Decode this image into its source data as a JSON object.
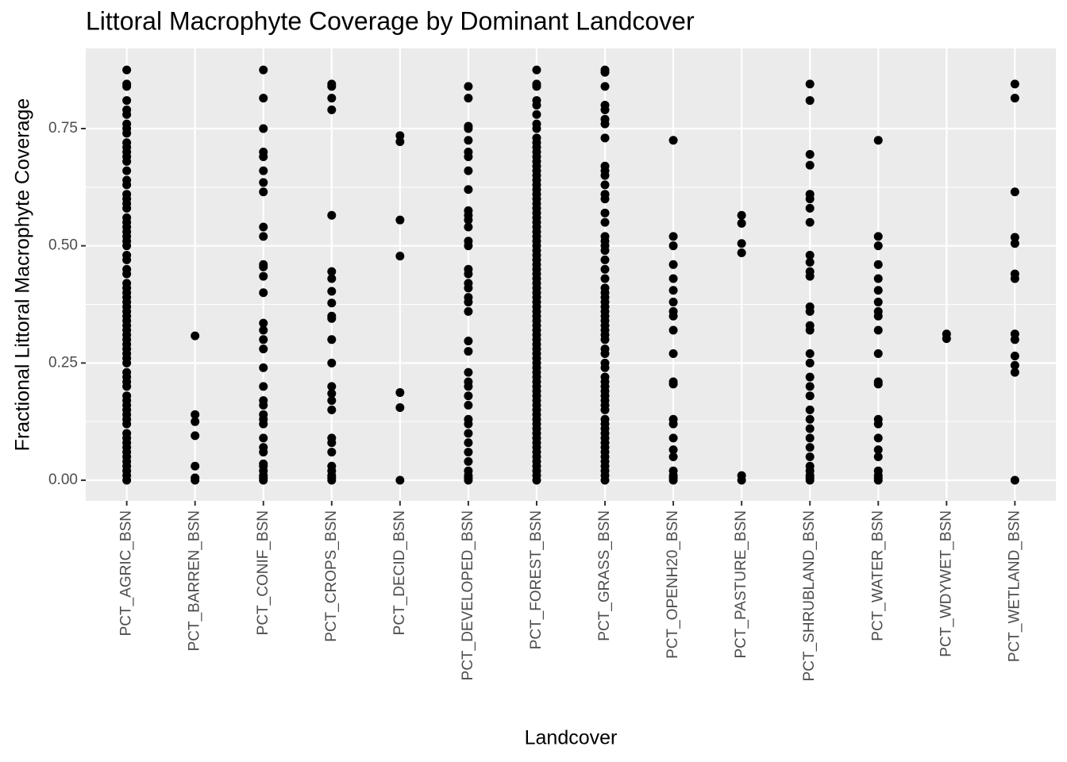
{
  "chart_data": {
    "type": "strip",
    "title": "Littoral Macrophyte Coverage by Dominant Landcover",
    "x_label": "Landcover",
    "y_label": "Fractional Littoral Macrophyte Coverage",
    "color": "#000000",
    "grid": true,
    "ylim": [
      -0.044,
      0.921
    ],
    "yticks": [
      {
        "value": 0,
        "label": "0.00"
      },
      0.25,
      {
        "value": 0.5,
        "label": "0.50"
      },
      0.75
    ],
    "categories": [
      "PCT_AGRIC_BSN",
      "PCT_BARREN_BSN",
      "PCT_CONIF_BSN",
      "PCT_CROPS_BSN",
      "PCT_DECID_BSN",
      "PCT_DEVELOPED_BSN",
      "PCT_FOREST_BSN",
      "PCT_GRASS_BSN",
      "PCT_OPENH20_BSN",
      "PCT_PASTURE_BSN",
      "PCT_SHRUBLAND_BSN",
      "PCT_WATER_BSN",
      "PCT_WDYWET_BSN",
      "PCT_WETLAND_BSN"
    ],
    "values": [
      [
        0,
        0.01,
        0.02,
        0.03,
        0.04,
        0.05,
        0.06,
        0.07,
        0.08,
        0.09,
        0.1,
        0.12,
        0.13,
        0.14,
        0.15,
        0.16,
        0.17,
        0.18,
        0.2,
        0.21,
        0.22,
        0.23,
        0.25,
        0.26,
        0.27,
        0.28,
        0.29,
        0.3,
        0.31,
        0.32,
        0.33,
        0.34,
        0.35,
        0.36,
        0.37,
        0.38,
        0.39,
        0.4,
        0.41,
        0.42,
        0.44,
        0.45,
        0.47,
        0.48,
        0.5,
        0.51,
        0.52,
        0.53,
        0.54,
        0.55,
        0.56,
        0.58,
        0.59,
        0.6,
        0.61,
        0.63,
        0.64,
        0.66,
        0.68,
        0.69,
        0.7,
        0.71,
        0.72,
        0.74,
        0.75,
        0.76,
        0.78,
        0.79,
        0.81,
        0.84,
        0.845,
        0.875
      ],
      [
        0,
        0.005,
        0.03,
        0.095,
        0.125,
        0.14,
        0.308
      ],
      [
        0,
        0.005,
        0.01,
        0.02,
        0.03,
        0.035,
        0.06,
        0.07,
        0.09,
        0.12,
        0.13,
        0.14,
        0.16,
        0.17,
        0.2,
        0.24,
        0.28,
        0.3,
        0.32,
        0.335,
        0.4,
        0.435,
        0.455,
        0.46,
        0.52,
        0.54,
        0.615,
        0.635,
        0.66,
        0.69,
        0.7,
        0.75,
        0.815,
        0.875
      ],
      [
        0,
        0.005,
        0.01,
        0.02,
        0.03,
        0.06,
        0.08,
        0.09,
        0.15,
        0.17,
        0.185,
        0.2,
        0.25,
        0.3,
        0.345,
        0.35,
        0.378,
        0.403,
        0.43,
        0.445,
        0.565,
        0.79,
        0.815,
        0.84,
        0.845
      ],
      [
        0,
        0.155,
        0.187,
        0.478,
        0.555,
        0.722,
        0.735
      ],
      [
        0,
        0.005,
        0.01,
        0.02,
        0.04,
        0.06,
        0.08,
        0.1,
        0.12,
        0.13,
        0.16,
        0.18,
        0.2,
        0.21,
        0.23,
        0.275,
        0.297,
        0.36,
        0.38,
        0.39,
        0.41,
        0.42,
        0.44,
        0.45,
        0.5,
        0.51,
        0.54,
        0.555,
        0.565,
        0.575,
        0.62,
        0.66,
        0.69,
        0.7,
        0.725,
        0.75,
        0.755,
        0.815,
        0.84
      ],
      [
        0,
        0.01,
        0.02,
        0.03,
        0.04,
        0.05,
        0.06,
        0.07,
        0.08,
        0.09,
        0.1,
        0.11,
        0.12,
        0.13,
        0.14,
        0.15,
        0.16,
        0.17,
        0.18,
        0.19,
        0.2,
        0.21,
        0.22,
        0.23,
        0.24,
        0.25,
        0.26,
        0.27,
        0.28,
        0.29,
        0.3,
        0.31,
        0.32,
        0.33,
        0.34,
        0.35,
        0.36,
        0.37,
        0.38,
        0.39,
        0.4,
        0.41,
        0.42,
        0.43,
        0.44,
        0.45,
        0.46,
        0.47,
        0.48,
        0.49,
        0.5,
        0.51,
        0.52,
        0.53,
        0.54,
        0.55,
        0.56,
        0.57,
        0.58,
        0.59,
        0.6,
        0.61,
        0.62,
        0.63,
        0.64,
        0.65,
        0.66,
        0.67,
        0.68,
        0.69,
        0.7,
        0.71,
        0.72,
        0.73,
        0.75,
        0.76,
        0.78,
        0.8,
        0.81,
        0.84,
        0.845,
        0.875
      ],
      [
        0,
        0.01,
        0.02,
        0.03,
        0.04,
        0.05,
        0.06,
        0.07,
        0.08,
        0.09,
        0.1,
        0.11,
        0.12,
        0.13,
        0.15,
        0.16,
        0.17,
        0.18,
        0.19,
        0.2,
        0.21,
        0.22,
        0.24,
        0.25,
        0.27,
        0.28,
        0.3,
        0.31,
        0.32,
        0.33,
        0.34,
        0.35,
        0.36,
        0.37,
        0.38,
        0.39,
        0.4,
        0.41,
        0.43,
        0.45,
        0.47,
        0.49,
        0.5,
        0.51,
        0.52,
        0.55,
        0.57,
        0.6,
        0.61,
        0.63,
        0.65,
        0.66,
        0.67,
        0.73,
        0.76,
        0.77,
        0.79,
        0.8,
        0.84,
        0.87,
        0.875
      ],
      [
        0,
        0.005,
        0.01,
        0.02,
        0.05,
        0.065,
        0.09,
        0.12,
        0.13,
        0.205,
        0.21,
        0.27,
        0.32,
        0.35,
        0.36,
        0.38,
        0.405,
        0.43,
        0.46,
        0.5,
        0.52,
        0.725
      ],
      [
        0,
        0.01,
        0.485,
        0.505,
        0.548,
        0.565
      ],
      [
        0,
        0.005,
        0.01,
        0.02,
        0.03,
        0.05,
        0.07,
        0.09,
        0.11,
        0.13,
        0.15,
        0.18,
        0.2,
        0.22,
        0.25,
        0.27,
        0.32,
        0.33,
        0.36,
        0.37,
        0.435,
        0.445,
        0.465,
        0.48,
        0.55,
        0.58,
        0.6,
        0.61,
        0.672,
        0.695,
        0.81,
        0.845
      ],
      [
        0,
        0.005,
        0.01,
        0.02,
        0.05,
        0.065,
        0.09,
        0.12,
        0.13,
        0.205,
        0.21,
        0.27,
        0.32,
        0.35,
        0.36,
        0.38,
        0.405,
        0.43,
        0.46,
        0.5,
        0.52,
        0.725
      ],
      [
        0.302,
        0.312
      ],
      [
        0,
        0.23,
        0.245,
        0.265,
        0.3,
        0.312,
        0.43,
        0.44,
        0.505,
        0.518,
        0.615,
        0.815,
        0.845
      ]
    ]
  }
}
